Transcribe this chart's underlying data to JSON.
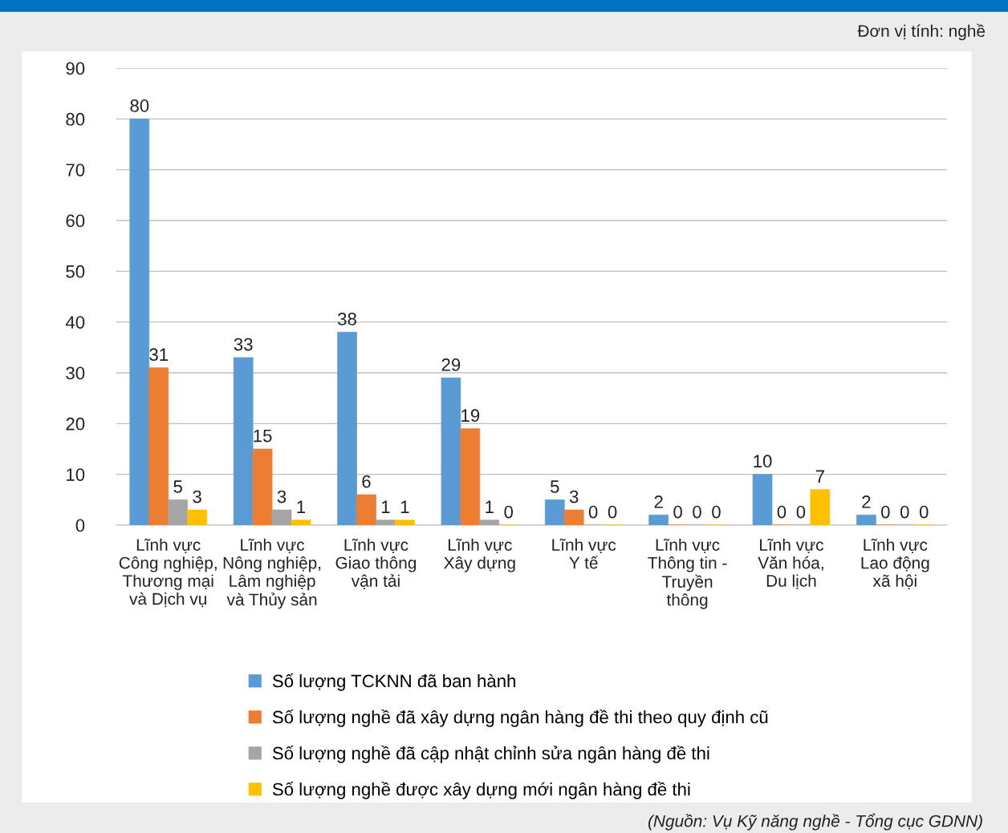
{
  "chart_data": {
    "type": "bar",
    "categories": [
      "Lĩnh vực\nCông nghiệp,\nThương mại\nvà Dịch vụ",
      "Lĩnh vực\nNông nghiệp,\nLâm nghiệp\nvà Thủy sản",
      "Lĩnh vực\nGiao thông\nvận tải",
      "Lĩnh vực\nXây dựng",
      "Lĩnh vực\nY tế",
      "Lĩnh vực\nThông tin -\nTruyền\nthông",
      "Lĩnh vực\nVăn hóa,\nDu lịch",
      "Lĩnh vực\nLao động\nxã hội"
    ],
    "series": [
      {
        "name": "Số lượng TCKNN đã ban hành",
        "color": "#5b9bd5",
        "values": [
          80,
          33,
          38,
          29,
          5,
          2,
          10,
          2
        ]
      },
      {
        "name": "Số lượng nghề đã xây dựng ngân hàng đề thi theo quy định cũ",
        "color": "#ed7d31",
        "values": [
          31,
          15,
          6,
          19,
          3,
          0,
          0,
          0
        ]
      },
      {
        "name": "Số lượng nghề đã cập nhật chỉnh sửa ngân hàng đề thi",
        "color": "#a5a5a5",
        "values": [
          5,
          3,
          1,
          1,
          0,
          0,
          0,
          0
        ]
      },
      {
        "name": "Số lượng nghề được xây dựng mới ngân hàng đề thi",
        "color": "#ffc000",
        "values": [
          3,
          1,
          1,
          0,
          0,
          0,
          7,
          0
        ]
      }
    ],
    "ylim": [
      0,
      90
    ],
    "yticks": [
      0,
      10,
      20,
      30,
      40,
      50,
      60,
      70,
      80,
      90
    ],
    "grid": "y",
    "legend": "bottom",
    "data_labels": true,
    "annotations": [
      "Đơn vị tính: nghề",
      "(Nguồn: Vụ Kỹ năng nghề - Tổng cục GDNN)"
    ]
  }
}
